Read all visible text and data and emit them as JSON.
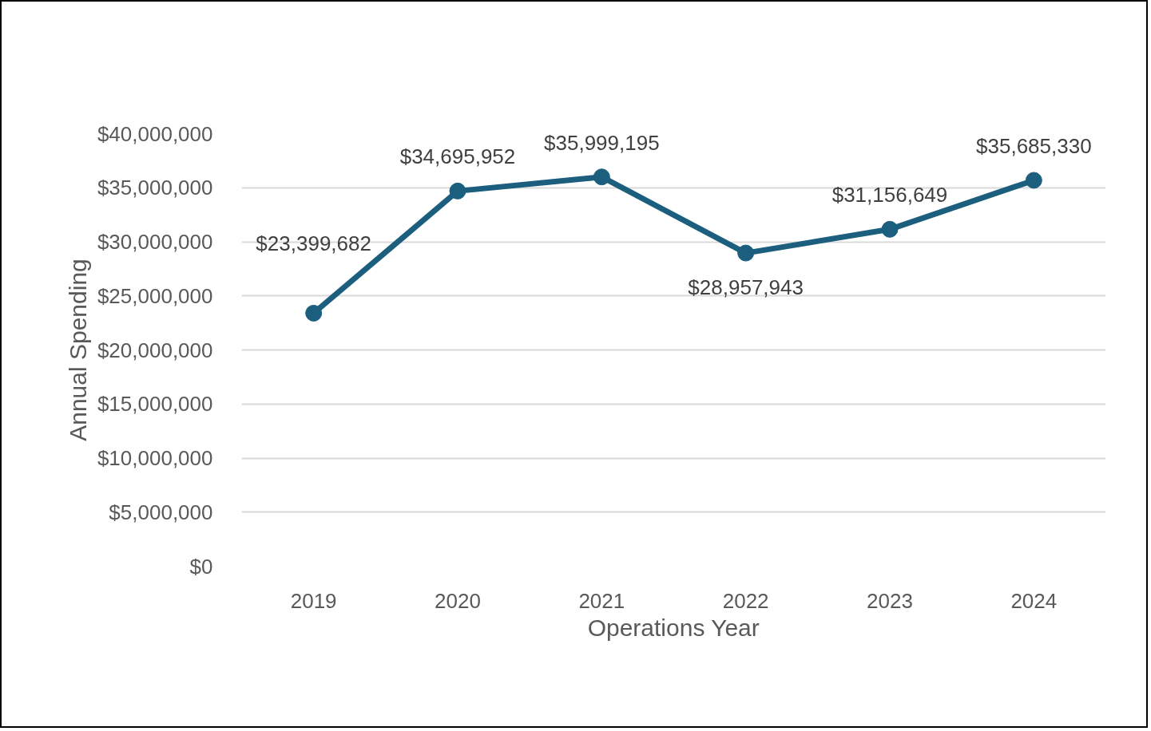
{
  "chart_data": {
    "type": "line",
    "xlabel": "Operations Year",
    "ylabel": "Annual Spending",
    "categories": [
      "2019",
      "2020",
      "2021",
      "2022",
      "2023",
      "2024"
    ],
    "series": [
      {
        "color": "#1b5e7e",
        "values": [
          23399682,
          34695952,
          35999195,
          28957943,
          31156649,
          35685330
        ],
        "value_labels": [
          "$23,399,682",
          "$34,695,952",
          "$35,999,195",
          "$28,957,943",
          "$31,156,649",
          "$35,685,330"
        ]
      }
    ],
    "ylim": [
      0,
      40000000
    ],
    "yticks": [
      {
        "value": 0,
        "label": "$0"
      },
      {
        "value": 5000000,
        "label": "$5,000,000"
      },
      {
        "value": 10000000,
        "label": "$10,000,000"
      },
      {
        "value": 15000000,
        "label": "$15,000,000"
      },
      {
        "value": 20000000,
        "label": "$20,000,000"
      },
      {
        "value": 25000000,
        "label": "$25,000,000"
      },
      {
        "value": 30000000,
        "label": "$30,000,000"
      },
      {
        "value": 35000000,
        "label": "$35,000,000"
      },
      {
        "value": 40000000,
        "label": "$40,000,000"
      }
    ],
    "grid": "y",
    "marker": "circle",
    "line_style": "solid"
  }
}
